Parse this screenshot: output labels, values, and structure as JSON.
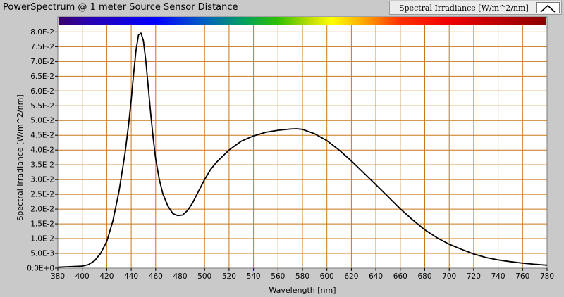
{
  "window": {
    "title": "PowerSpectrum @ 1 meter Source Sensor Distance",
    "legend_label": "Spectral Irradiance [W/m^2/nm]",
    "legend_icon": "line-sample-icon"
  },
  "colors": {
    "background": "#c9c9c9",
    "plot_area": "#ffffff",
    "grid": "#c8781c",
    "curve": "#000000"
  },
  "chart_data": {
    "type": "line",
    "title": "",
    "xlabel": "Wavelength [nm]",
    "ylabel": "Spectral Irradiance [W/m^2/nm]",
    "xlim": [
      380,
      780
    ],
    "ylim": [
      0,
      0.082
    ],
    "grid": true,
    "legend": "top-right",
    "x_ticks": [
      380,
      400,
      420,
      440,
      460,
      480,
      500,
      520,
      540,
      560,
      580,
      600,
      620,
      640,
      660,
      680,
      700,
      720,
      740,
      760,
      780
    ],
    "x_tick_labels": [
      "380",
      "400",
      "420",
      "440",
      "460",
      "480",
      "500",
      "520",
      "540",
      "560",
      "580",
      "600",
      "620",
      "640",
      "660",
      "680",
      "700",
      "720",
      "740",
      "760",
      "780"
    ],
    "y_ticks": [
      0,
      0.005,
      0.01,
      0.015,
      0.02,
      0.025,
      0.03,
      0.035,
      0.04,
      0.045,
      0.05,
      0.055,
      0.06,
      0.065,
      0.07,
      0.075,
      0.08
    ],
    "y_tick_labels": [
      "0.0E+0",
      "5.0E-3",
      "1.0E-2",
      "1.5E-2",
      "2.0E-2",
      "2.5E-2",
      "3.0E-2",
      "3.5E-2",
      "4.0E-2",
      "4.5E-2",
      "5.0E-2",
      "5.5E-2",
      "6.0E-2",
      "6.5E-2",
      "7.0E-2",
      "7.5E-2",
      "8.0E-2"
    ],
    "spectrum_bar": true,
    "series": [
      {
        "x": [
          380,
          390,
          400,
          405,
          410,
          415,
          420,
          425,
          430,
          435,
          438,
          440,
          442,
          444,
          446,
          448,
          450,
          452,
          454,
          456,
          458,
          460,
          463,
          466,
          470,
          474,
          478,
          482,
          486,
          490,
          495,
          500,
          505,
          510,
          515,
          520,
          525,
          530,
          540,
          550,
          560,
          570,
          575,
          580,
          590,
          600,
          610,
          620,
          630,
          640,
          650,
          660,
          670,
          680,
          690,
          700,
          710,
          720,
          730,
          740,
          750,
          760,
          770,
          780
        ],
        "y": [
          0.0003,
          0.0005,
          0.0007,
          0.0012,
          0.0025,
          0.005,
          0.009,
          0.016,
          0.026,
          0.039,
          0.049,
          0.057,
          0.066,
          0.074,
          0.079,
          0.0796,
          0.077,
          0.07,
          0.061,
          0.052,
          0.044,
          0.037,
          0.03,
          0.025,
          0.021,
          0.0185,
          0.0178,
          0.018,
          0.0195,
          0.022,
          0.026,
          0.03,
          0.0335,
          0.036,
          0.038,
          0.04,
          0.0415,
          0.043,
          0.0448,
          0.046,
          0.0467,
          0.0471,
          0.0472,
          0.047,
          0.0455,
          0.0432,
          0.04,
          0.0363,
          0.0323,
          0.0283,
          0.0242,
          0.0201,
          0.0164,
          0.013,
          0.0103,
          0.0081,
          0.0064,
          0.0048,
          0.0036,
          0.0028,
          0.0022,
          0.0017,
          0.0013,
          0.001
        ]
      }
    ]
  }
}
